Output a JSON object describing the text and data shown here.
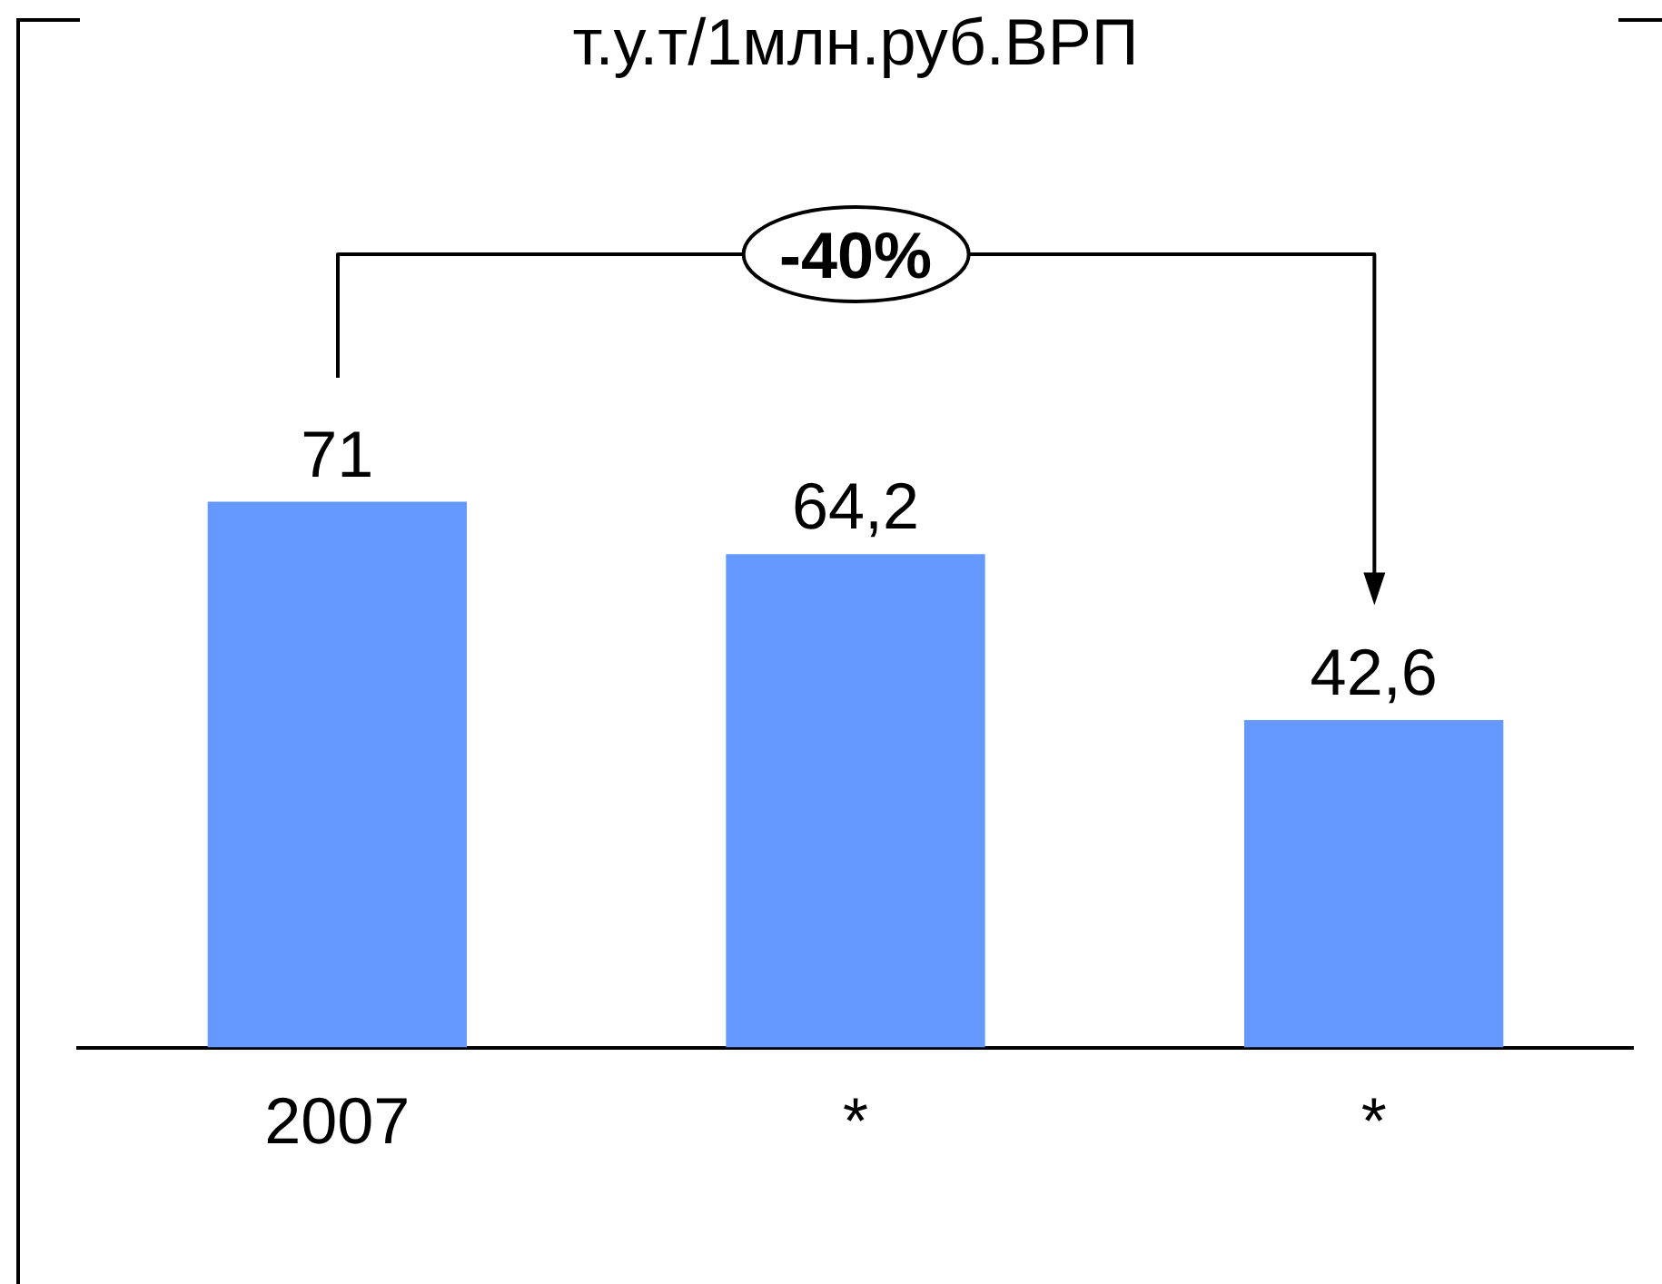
{
  "chart_data": {
    "type": "bar",
    "title": "т.у.т/1млн.руб.ВРП",
    "categories": [
      "2007",
      "*",
      "*"
    ],
    "values": [
      71,
      64.2,
      42.6
    ],
    "value_labels": [
      "71",
      "64,2",
      "42,6"
    ],
    "color": "#6699ff",
    "tick_labels": "x",
    "annotations": [
      "-40%"
    ]
  }
}
